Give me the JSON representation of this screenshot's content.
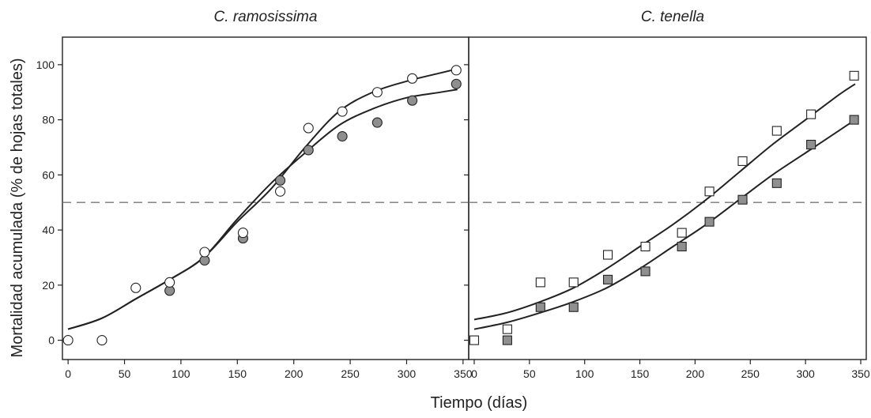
{
  "colors": {
    "axis": "#222222",
    "line": "#222222",
    "ref_line": "#777777",
    "open_fill": "#ffffff",
    "filled_fill": "#8f8f8f",
    "background": "#ffffff"
  },
  "figure": {
    "ylabel": "Mortalidad acumulada (% de hojas totales)",
    "xlabel": "Tiempo  (días)"
  },
  "chart_data": [
    {
      "type": "scatter",
      "title": "C. ramosissima",
      "marker": "circle",
      "xlim": [
        -5,
        355
      ],
      "ylim": [
        -7,
        110
      ],
      "xticks": [
        0,
        50,
        100,
        150,
        200,
        250,
        300,
        350
      ],
      "yticks": [
        0,
        20,
        40,
        60,
        80,
        100
      ],
      "reference_line_y": 50,
      "series": [
        {
          "fill": "open",
          "x": [
            0,
            30,
            60,
            90,
            121,
            155,
            188,
            213,
            243,
            274,
            305,
            344
          ],
          "y": [
            0,
            0,
            19,
            21,
            32,
            39,
            54,
            77,
            83,
            90,
            95,
            98
          ],
          "fit_x": [
            0,
            30,
            60,
            90,
            120,
            150,
            180,
            210,
            240,
            270,
            300,
            330,
            345
          ],
          "fit_y": [
            4,
            8,
            15,
            22,
            30,
            43,
            55,
            70,
            83,
            90,
            94,
            97,
            98.5
          ]
        },
        {
          "fill": "filled",
          "x": [
            90,
            121,
            155,
            188,
            213,
            243,
            274,
            305,
            344
          ],
          "y": [
            18,
            29,
            37,
            58,
            69,
            74,
            79,
            87,
            93
          ],
          "fit_x": [
            0,
            30,
            60,
            90,
            120,
            150,
            180,
            210,
            240,
            270,
            300,
            330,
            345
          ],
          "fit_y": [
            4,
            8,
            15,
            22,
            30,
            44,
            57,
            68,
            78,
            84,
            88,
            90,
            91
          ]
        }
      ]
    },
    {
      "type": "scatter",
      "title": "C. tenella",
      "marker": "square",
      "xlim": [
        -5,
        355
      ],
      "ylim": [
        -7,
        110
      ],
      "xticks": [
        0,
        50,
        100,
        150,
        200,
        250,
        300,
        350
      ],
      "yticks": [
        0,
        20,
        40,
        60,
        80,
        100
      ],
      "reference_line_y": 50,
      "series": [
        {
          "fill": "open",
          "x": [
            0,
            30,
            60,
            90,
            121,
            155,
            188,
            213,
            243,
            274,
            305,
            344
          ],
          "y": [
            0,
            4,
            21,
            21,
            31,
            34,
            39,
            54,
            65,
            76,
            82,
            96
          ],
          "fit_x": [
            0,
            30,
            60,
            90,
            120,
            150,
            180,
            210,
            240,
            270,
            300,
            330,
            345
          ],
          "fit_y": [
            7.5,
            10,
            14,
            19,
            26,
            34,
            42,
            51,
            61,
            71,
            80,
            89,
            93
          ]
        },
        {
          "fill": "filled",
          "x": [
            30,
            60,
            90,
            121,
            155,
            188,
            213,
            243,
            274,
            305,
            344
          ],
          "y": [
            0,
            12,
            12,
            22,
            25,
            34,
            43,
            51,
            57,
            71,
            80
          ],
          "fit_x": [
            0,
            30,
            60,
            90,
            120,
            150,
            180,
            210,
            240,
            270,
            300,
            330,
            345
          ],
          "fit_y": [
            4,
            6.5,
            10,
            14,
            19,
            26,
            34,
            42,
            51,
            60,
            68,
            76,
            80
          ]
        }
      ]
    }
  ]
}
